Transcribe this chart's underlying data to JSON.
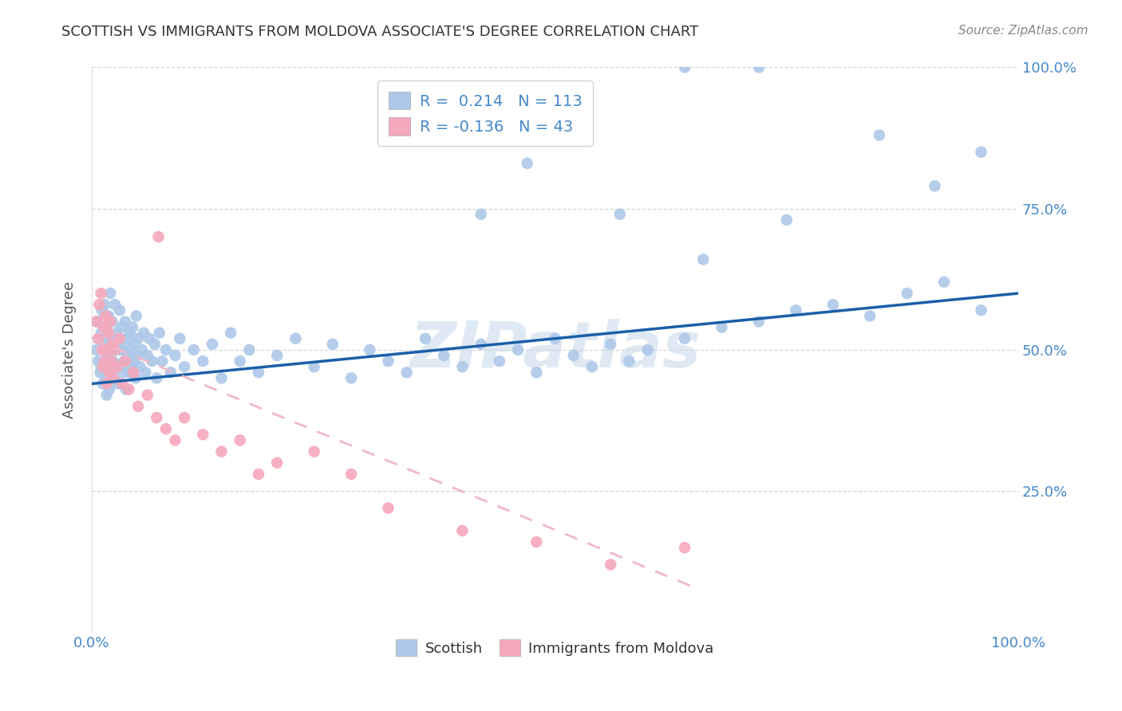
{
  "title": "SCOTTISH VS IMMIGRANTS FROM MOLDOVA ASSOCIATE'S DEGREE CORRELATION CHART",
  "source": "Source: ZipAtlas.com",
  "ylabel": "Associate's Degree",
  "watermark": "ZIPatlas",
  "series1_label": "Scottish",
  "series2_label": "Immigrants from Moldova",
  "series1_R": 0.214,
  "series1_N": 113,
  "series2_R": -0.136,
  "series2_N": 43,
  "series1_color": "#adc8e8",
  "series2_color": "#f5a8bc",
  "series1_line_color": "#1a5fa8",
  "series2_line_color": "#f0b8c8",
  "legend_patch1_color": "#adc8e8",
  "legend_patch2_color": "#f5a8bc",
  "background_color": "#ffffff",
  "grid_color": "#cccccc",
  "title_color": "#333333",
  "axis_tick_color": "#4488cc",
  "ylabel_color": "#555555",
  "source_color": "#888888",
  "xlim": [
    0.0,
    1.0
  ],
  "ylim": [
    0.0,
    1.0
  ],
  "scatter1_x": [
    0.005,
    0.006,
    0.007,
    0.008,
    0.009,
    0.01,
    0.01,
    0.011,
    0.012,
    0.013,
    0.014,
    0.015,
    0.015,
    0.016,
    0.017,
    0.018,
    0.019,
    0.02,
    0.02,
    0.021,
    0.022,
    0.023,
    0.024,
    0.025,
    0.026,
    0.027,
    0.028,
    0.029,
    0.03,
    0.031,
    0.032,
    0.033,
    0.034,
    0.035,
    0.036,
    0.037,
    0.038,
    0.039,
    0.04,
    0.041,
    0.042,
    0.043,
    0.044,
    0.045,
    0.046,
    0.047,
    0.048,
    0.049,
    0.05,
    0.052,
    0.054,
    0.056,
    0.058,
    0.06,
    0.062,
    0.065,
    0.068,
    0.07,
    0.073,
    0.076,
    0.08,
    0.085,
    0.09,
    0.095,
    0.1,
    0.11,
    0.12,
    0.13,
    0.14,
    0.15,
    0.16,
    0.17,
    0.18,
    0.2,
    0.22,
    0.24,
    0.26,
    0.28,
    0.3,
    0.32,
    0.34,
    0.36,
    0.38,
    0.4,
    0.42,
    0.44,
    0.46,
    0.48,
    0.5,
    0.52,
    0.54,
    0.56,
    0.58,
    0.6,
    0.64,
    0.68,
    0.72,
    0.76,
    0.8,
    0.84,
    0.88,
    0.92,
    0.96,
    0.47,
    0.57,
    0.66,
    0.75,
    0.85,
    0.91,
    0.96,
    0.64,
    0.72,
    0.42
  ],
  "scatter1_y": [
    0.5,
    0.55,
    0.48,
    0.52,
    0.46,
    0.53,
    0.47,
    0.57,
    0.44,
    0.51,
    0.58,
    0.45,
    0.54,
    0.42,
    0.49,
    0.56,
    0.43,
    0.6,
    0.47,
    0.52,
    0.55,
    0.48,
    0.45,
    0.58,
    0.5,
    0.53,
    0.47,
    0.44,
    0.57,
    0.5,
    0.54,
    0.46,
    0.51,
    0.48,
    0.55,
    0.43,
    0.52,
    0.49,
    0.46,
    0.53,
    0.5,
    0.47,
    0.54,
    0.48,
    0.51,
    0.45,
    0.56,
    0.49,
    0.52,
    0.47,
    0.5,
    0.53,
    0.46,
    0.49,
    0.52,
    0.48,
    0.51,
    0.45,
    0.53,
    0.48,
    0.5,
    0.46,
    0.49,
    0.52,
    0.47,
    0.5,
    0.48,
    0.51,
    0.45,
    0.53,
    0.48,
    0.5,
    0.46,
    0.49,
    0.52,
    0.47,
    0.51,
    0.45,
    0.5,
    0.48,
    0.46,
    0.52,
    0.49,
    0.47,
    0.51,
    0.48,
    0.5,
    0.46,
    0.52,
    0.49,
    0.47,
    0.51,
    0.48,
    0.5,
    0.52,
    0.54,
    0.55,
    0.57,
    0.58,
    0.56,
    0.6,
    0.62,
    0.57,
    0.83,
    0.74,
    0.66,
    0.73,
    0.88,
    0.79,
    0.85,
    1.0,
    1.0,
    0.74
  ],
  "scatter2_x": [
    0.005,
    0.007,
    0.008,
    0.01,
    0.011,
    0.012,
    0.013,
    0.014,
    0.015,
    0.016,
    0.017,
    0.018,
    0.019,
    0.02,
    0.021,
    0.022,
    0.023,
    0.025,
    0.027,
    0.03,
    0.033,
    0.036,
    0.04,
    0.045,
    0.05,
    0.06,
    0.07,
    0.08,
    0.09,
    0.1,
    0.12,
    0.14,
    0.16,
    0.18,
    0.2,
    0.24,
    0.28,
    0.32,
    0.4,
    0.48,
    0.56,
    0.64,
    0.072
  ],
  "scatter2_y": [
    0.55,
    0.52,
    0.58,
    0.6,
    0.5,
    0.47,
    0.54,
    0.48,
    0.56,
    0.44,
    0.5,
    0.53,
    0.46,
    0.55,
    0.48,
    0.51,
    0.45,
    0.5,
    0.47,
    0.52,
    0.44,
    0.48,
    0.43,
    0.46,
    0.4,
    0.42,
    0.38,
    0.36,
    0.34,
    0.38,
    0.35,
    0.32,
    0.34,
    0.28,
    0.3,
    0.32,
    0.28,
    0.22,
    0.18,
    0.16,
    0.12,
    0.15,
    0.7
  ]
}
